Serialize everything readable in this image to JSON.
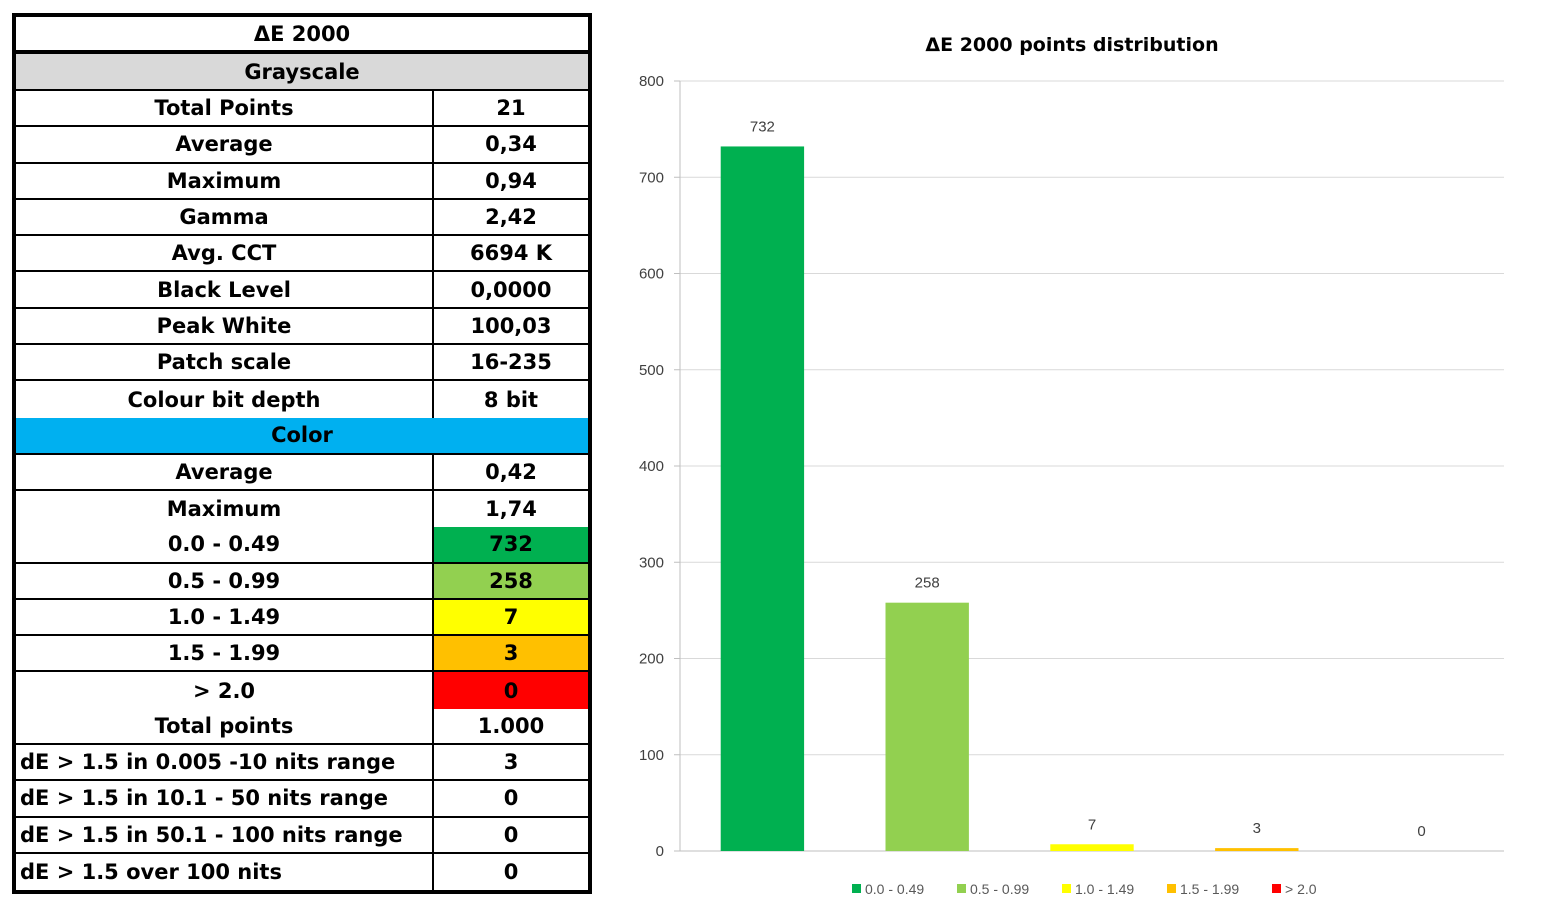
{
  "table": {
    "title": "ΔE 2000",
    "grayscale_header": "Grayscale",
    "grayscale_rows": [
      {
        "label": "Total Points",
        "value": "21"
      },
      {
        "label": "Average",
        "value": "0,34"
      },
      {
        "label": "Maximum",
        "value": "0,94"
      },
      {
        "label": "Gamma",
        "value": "2,42"
      },
      {
        "label": "Avg. CCT",
        "value": "6694 K"
      },
      {
        "label": "Black Level",
        "value": "0,0000"
      },
      {
        "label": "Peak White",
        "value": "100,03"
      },
      {
        "label": "Patch scale",
        "value": "16-235"
      },
      {
        "label": "Colour bit depth",
        "value": "8 bit"
      }
    ],
    "color_header": "Color",
    "color_rows": [
      {
        "label": "Average",
        "value": "0,42"
      },
      {
        "label": "Maximum",
        "value": "1,74"
      }
    ],
    "range_rows": [
      {
        "label": "0.0 - 0.49",
        "value": "732",
        "color": "#00b050"
      },
      {
        "label": "0.5 - 0.99",
        "value": "258",
        "color": "#92d050"
      },
      {
        "label": "1.0 - 1.49",
        "value": "7",
        "color": "#ffff00"
      },
      {
        "label": "1.5 - 1.99",
        "value": "3",
        "color": "#ffc000"
      },
      {
        "label": "> 2.0",
        "value": "0",
        "color": "#ff0000"
      }
    ],
    "summary_rows": [
      {
        "label": "Total points",
        "value": "1.000"
      },
      {
        "label": "dE > 1.5 in 0.005 -10 nits range",
        "value": "3"
      },
      {
        "label": "dE > 1.5 in 10.1 - 50  nits range",
        "value": "0"
      },
      {
        "label": "dE > 1.5 in 50.1 - 100 nits range",
        "value": "0"
      },
      {
        "label": "dE > 1.5 over 100 nits",
        "value": "0"
      }
    ]
  },
  "chart_data": {
    "type": "bar",
    "title": "ΔE 2000 points distribution",
    "categories": [
      "0.0 - 0.49",
      "0.5 - 0.99",
      "1.0 - 1.49",
      "1.5 - 1.99",
      "> 2.0"
    ],
    "values": [
      732,
      258,
      7,
      3,
      0
    ],
    "colors": [
      "#00b050",
      "#92d050",
      "#ffff00",
      "#ffc000",
      "#ff0000"
    ],
    "ylim": [
      0,
      800
    ],
    "yticks": [
      0,
      100,
      200,
      300,
      400,
      500,
      600,
      700,
      800
    ],
    "grid": true,
    "legend_position": "bottom",
    "xlabel": "",
    "ylabel": ""
  }
}
